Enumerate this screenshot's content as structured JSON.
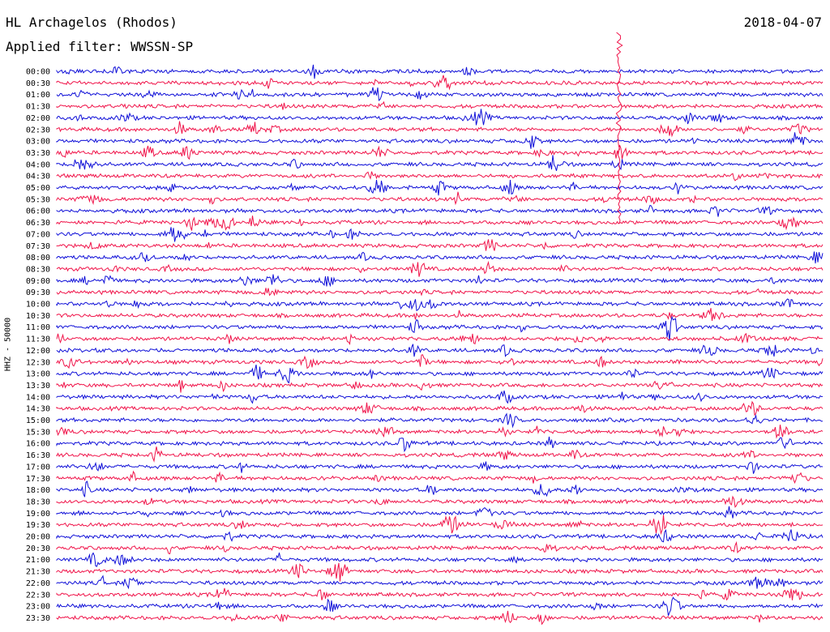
{
  "header": {
    "station": "HL Archagelos (Rhodos)",
    "date": "2018-04-07",
    "filter": "Applied filter: WWSSN-SP"
  },
  "chart_data": {
    "type": "line",
    "title": "HL Archagelos (Rhodos)",
    "ylabel": "HHZ - 50000",
    "xlabel": "",
    "row_labels": [
      "00:00",
      "00:30",
      "01:00",
      "01:30",
      "02:00",
      "02:30",
      "03:00",
      "03:30",
      "04:00",
      "04:30",
      "05:00",
      "05:30",
      "06:00",
      "06:30",
      "07:00",
      "07:30",
      "08:00",
      "08:30",
      "09:00",
      "09:30",
      "10:00",
      "10:30",
      "11:00",
      "11:30",
      "12:00",
      "12:30",
      "13:00",
      "13:30",
      "14:00",
      "14:30",
      "15:00",
      "15:30",
      "16:00",
      "16:30",
      "17:00",
      "17:30",
      "18:00",
      "18:30",
      "19:00",
      "19:30",
      "20:00",
      "20:30",
      "21:00",
      "21:30",
      "22:00",
      "22:30",
      "23:00",
      "23:30"
    ],
    "colors": {
      "even_rows": "#1010d8",
      "odd_rows": "#f0144a"
    },
    "grid": false,
    "legend": "none"
  }
}
